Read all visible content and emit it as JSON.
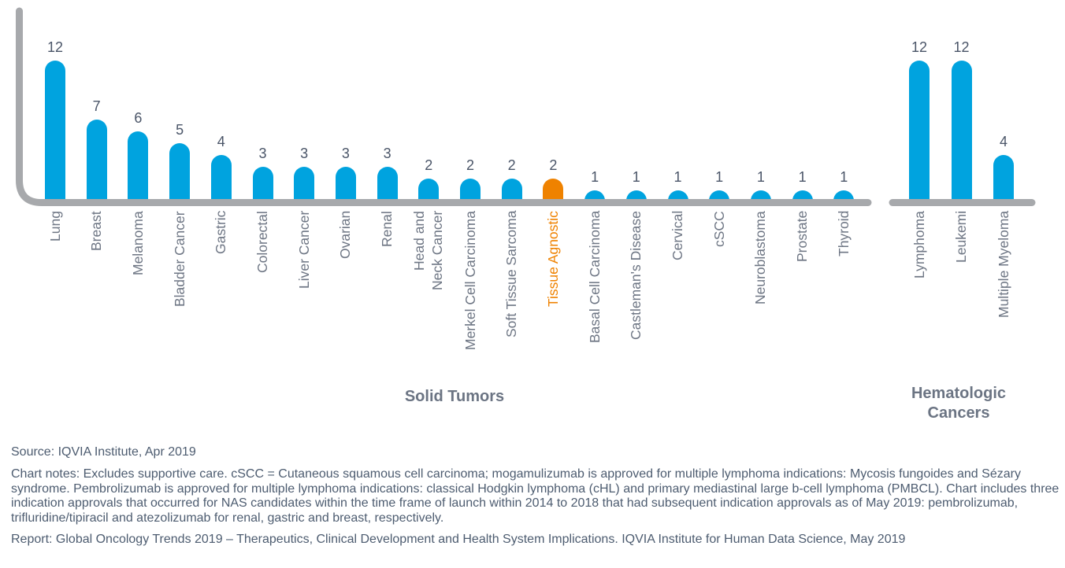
{
  "colors": {
    "bar_blue": "#00a3df",
    "bar_orange": "#ef8200",
    "axis_gray": "#a7a9ac",
    "value_text": "#4a5568",
    "category_text": "#6e7684",
    "section_text": "#6b7483"
  },
  "chart_data": {
    "type": "bar",
    "title": "",
    "ylim": [
      0,
      13
    ],
    "grid": false,
    "legend": "none",
    "groups": [
      {
        "title": "Solid Tumors",
        "bars": [
          {
            "category": "Lung",
            "value": 12
          },
          {
            "category": "Breast",
            "value": 7
          },
          {
            "category": "Melanoma",
            "value": 6
          },
          {
            "category": "Bladder Cancer",
            "value": 5
          },
          {
            "category": "Gastric",
            "value": 4
          },
          {
            "category": "Colorectal",
            "value": 3
          },
          {
            "category": "Liver Cancer",
            "value": 3
          },
          {
            "category": "Ovarian",
            "value": 3
          },
          {
            "category": "Renal",
            "value": 3
          },
          {
            "category": "Head and\nNeck Cancer",
            "value": 2
          },
          {
            "category": "Merkel Cell Carcinoma",
            "value": 2
          },
          {
            "category": "Soft Tissue Sarcoma",
            "value": 2
          },
          {
            "category": "Tissue Agnostic",
            "value": 2,
            "highlight": true
          },
          {
            "category": "Basal Cell Carcinoma",
            "value": 1
          },
          {
            "category": "Castleman's Disease",
            "value": 1
          },
          {
            "category": "Cervical",
            "value": 1
          },
          {
            "category": "cSCC",
            "value": 1
          },
          {
            "category": "Neuroblastoma",
            "value": 1
          },
          {
            "category": "Prostate",
            "value": 1
          },
          {
            "category": "Thyroid",
            "value": 1
          }
        ]
      },
      {
        "title": "Hematologic\nCancers",
        "bars": [
          {
            "category": "Lymphoma",
            "value": 12
          },
          {
            "category": "Leukemi",
            "value": 12
          },
          {
            "category": "Multiple Myeloma",
            "value": 4
          }
        ]
      }
    ]
  },
  "footer": {
    "source": "Source: IQVIA Institute, Apr 2019",
    "notes": "Chart notes: Excludes supportive care. cSCC = Cutaneous squamous cell carcinoma; mogamulizumab is approved for multiple lymphoma indications: Mycosis fungoides and Sézary syndrome. Pembrolizumab is approved for multiple lymphoma indications: classical Hodgkin lymphoma (cHL) and primary mediastinal large b-cell lymphoma (PMBCL). Chart includes three indication approvals that occurred for NAS candidates within the time frame of launch within 2014 to 2018 that had subsequent indication approvals as of May 2019: pembrolizumab, trifluridine/tipiracil and atezolizumab for renal, gastric and breast, respectively.",
    "report": "Report: Global Oncology Trends 2019 – Therapeutics, Clinical Development and Health System Implications. IQVIA Institute for Human Data Science, May 2019"
  }
}
